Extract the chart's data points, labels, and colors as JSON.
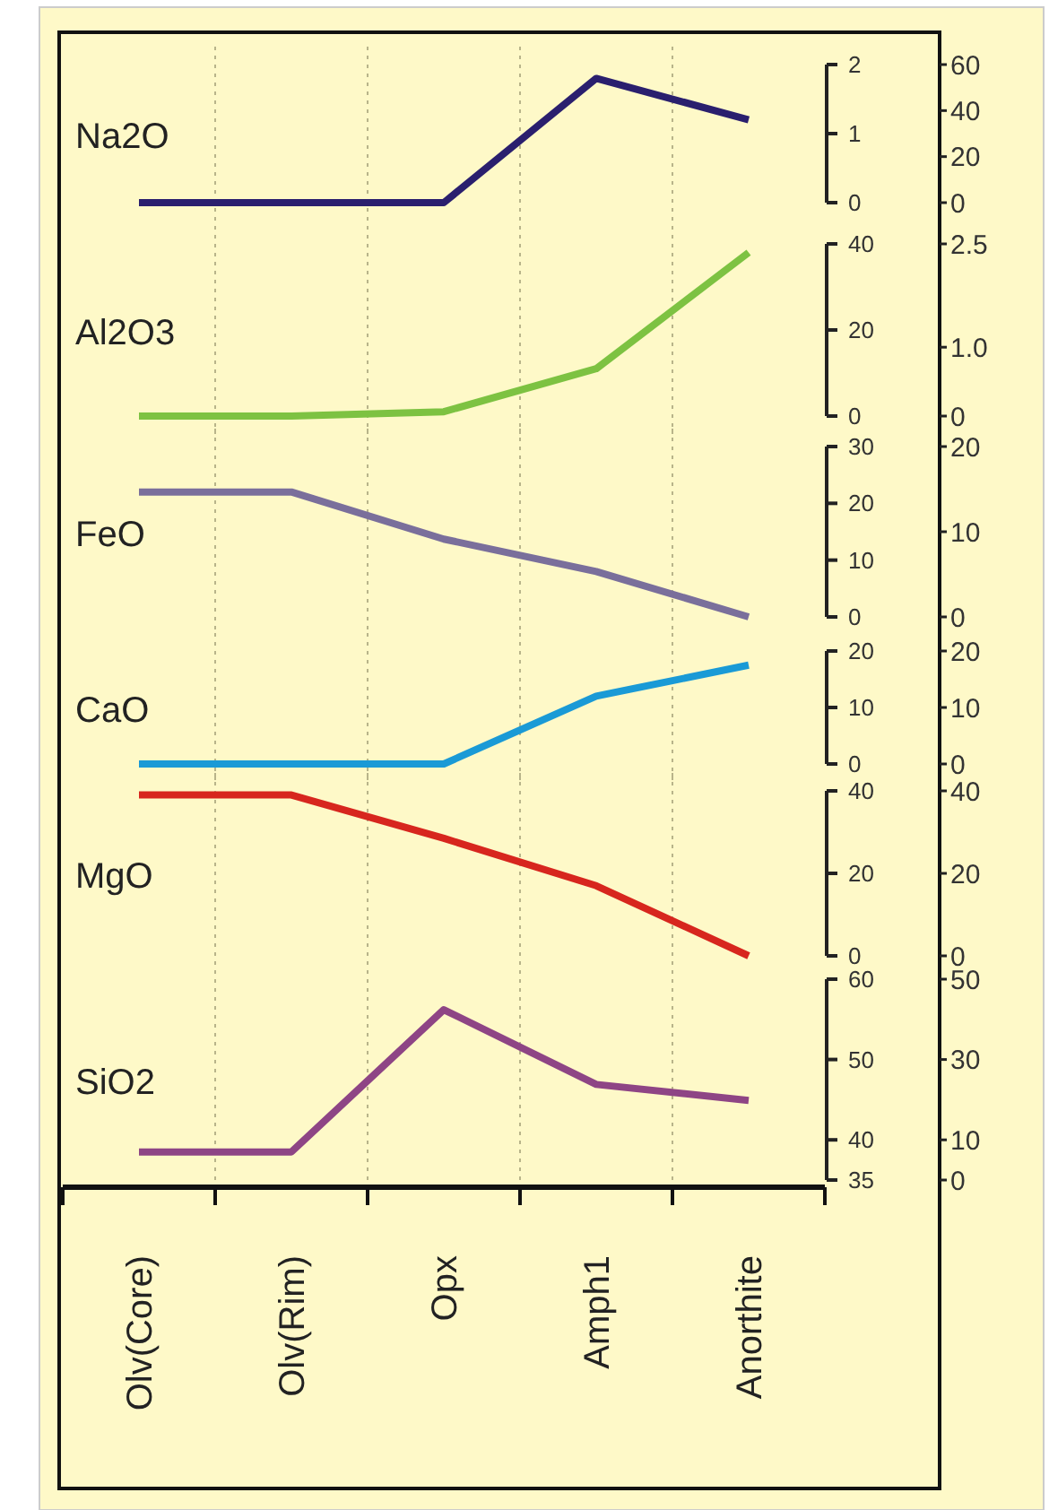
{
  "chart_data": [
    {
      "type": "line",
      "series": [
        {
          "name": "Na2O",
          "color": "#2a1f6e",
          "values": [
            0,
            0,
            0,
            1.8,
            1.2
          ]
        }
      ],
      "ylim": [
        0,
        2
      ],
      "yticks": [
        0,
        1,
        2
      ],
      "y2lim": [
        0,
        60
      ],
      "y2ticks": [
        0,
        20,
        40,
        60
      ],
      "grid": "x",
      "tick_labels": "y"
    },
    {
      "type": "line",
      "series": [
        {
          "name": "Al2O3",
          "color": "#7dc242",
          "values": [
            0,
            0,
            1,
            11,
            38
          ]
        }
      ],
      "ylim": [
        0,
        40
      ],
      "yticks": [
        0,
        20,
        40
      ],
      "y2lim": [
        0,
        2.5
      ],
      "y2ticks": [
        0,
        {
          "value": 1,
          "label": "1.0"
        },
        2.5
      ],
      "grid": "x",
      "tick_labels": "y"
    },
    {
      "type": "line",
      "series": [
        {
          "name": "FeO",
          "color": "#7a6f9b",
          "values": [
            22,
            22,
            13.7,
            8,
            0
          ]
        }
      ],
      "ylim": [
        0,
        30
      ],
      "yticks": [
        0,
        10,
        20,
        30
      ],
      "y2lim": [
        0,
        20
      ],
      "y2ticks": [
        0,
        10,
        20
      ],
      "grid": "x",
      "tick_labels": "y"
    },
    {
      "type": "line",
      "series": [
        {
          "name": "CaO",
          "color": "#1a9ad6",
          "values": [
            0,
            0,
            0,
            12,
            17.5
          ]
        }
      ],
      "ylim": [
        0,
        20
      ],
      "yticks": [
        0,
        10,
        20
      ],
      "y2lim": [
        0,
        20
      ],
      "y2ticks": [
        0,
        10,
        20
      ],
      "grid": "x",
      "tick_labels": "y"
    },
    {
      "type": "line",
      "series": [
        {
          "name": "MgO",
          "color": "#d7261e",
          "values": [
            39,
            39,
            28.5,
            17,
            0
          ]
        }
      ],
      "ylim": [
        0,
        40
      ],
      "yticks": [
        0,
        20,
        40
      ],
      "y2lim": [
        0,
        40
      ],
      "y2ticks": [
        0,
        20,
        40
      ],
      "grid": "x",
      "tick_labels": "y"
    },
    {
      "type": "line",
      "categories": [
        "Olv(Core)",
        "Olv(Rim)",
        "Opx",
        "Amph1",
        "Anorthite"
      ],
      "series": [
        {
          "name": "SiO2",
          "color": "#8e4585",
          "values": [
            38.5,
            38.5,
            56.2,
            46.9,
            44.9
          ]
        }
      ],
      "ylim": [
        35,
        60
      ],
      "yticks": [
        35,
        40,
        50,
        60
      ],
      "y2lim": [
        0,
        50
      ],
      "y2ticks": [
        0,
        10,
        30,
        50
      ],
      "grid": "x"
    }
  ]
}
